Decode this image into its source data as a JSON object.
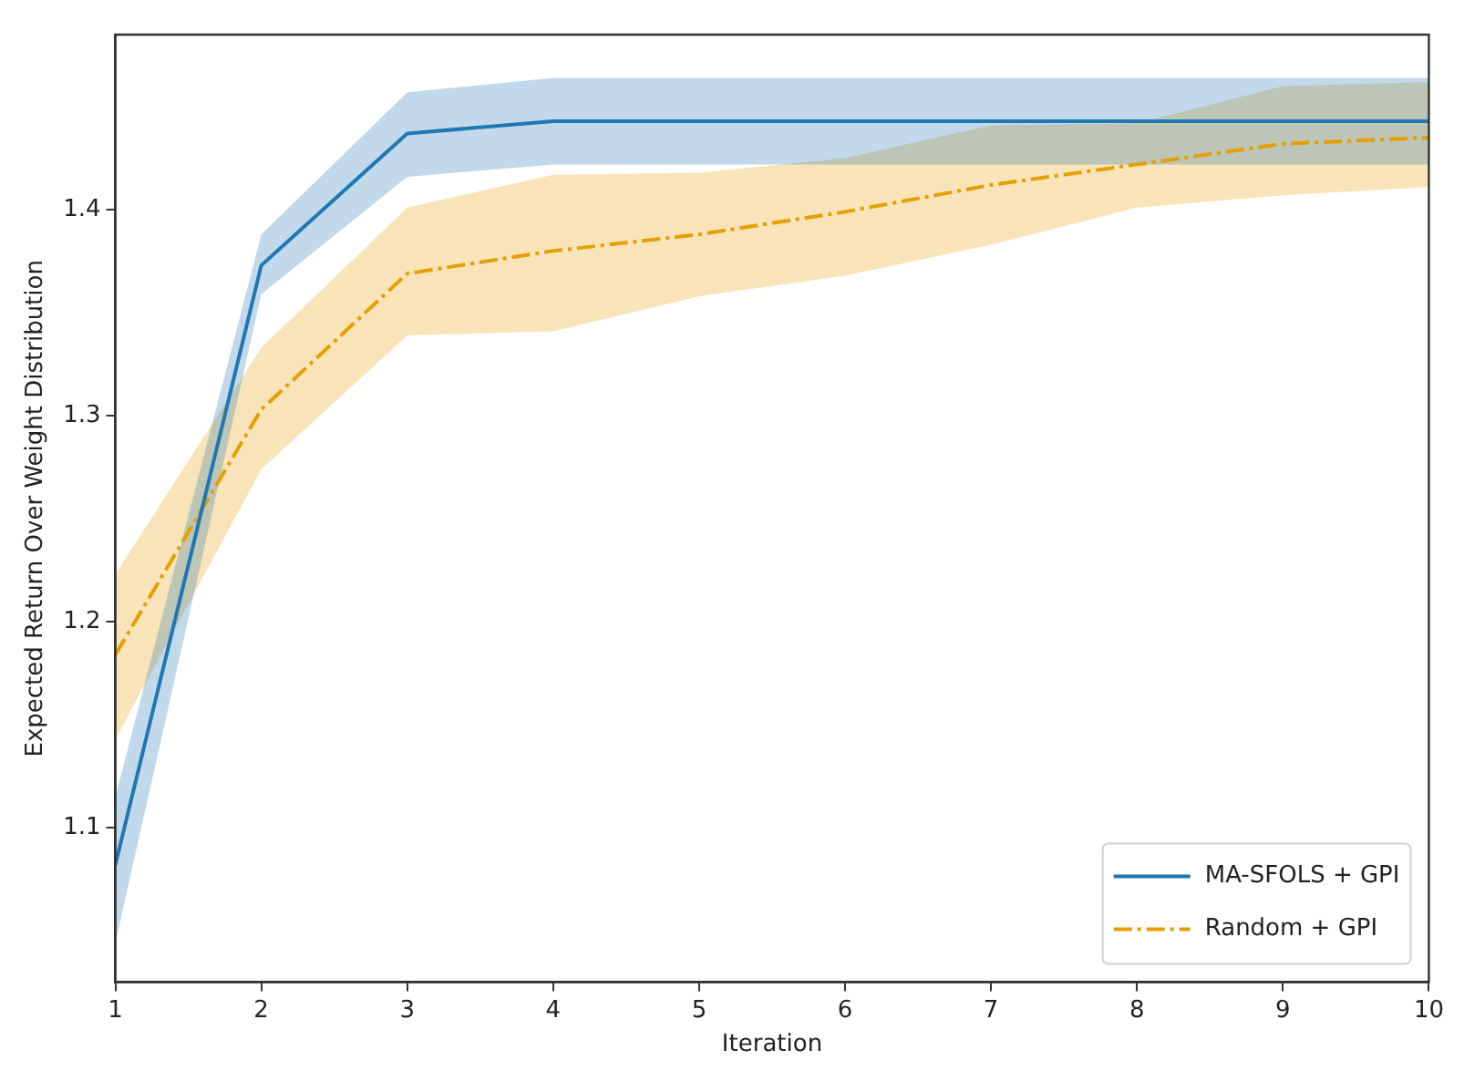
{
  "chart_data": {
    "type": "line",
    "xlabel": "Iteration",
    "ylabel": "Expected Return Over Weight Distribution",
    "x": [
      1,
      2,
      3,
      4,
      5,
      6,
      7,
      8,
      9,
      10
    ],
    "series": [
      {
        "name": "MA-SFOLS + GPI",
        "color": "#1f77b4",
        "line_style": "solid",
        "values": [
          1.082,
          1.373,
          1.437,
          1.443,
          1.443,
          1.443,
          1.443,
          1.443,
          1.443,
          1.443
        ],
        "lower": [
          1.044,
          1.359,
          1.416,
          1.422,
          1.422,
          1.422,
          1.422,
          1.422,
          1.422,
          1.422
        ],
        "upper": [
          1.115,
          1.388,
          1.457,
          1.464,
          1.464,
          1.464,
          1.464,
          1.464,
          1.464,
          1.464
        ]
      },
      {
        "name": "Random + GPI",
        "color": "#e69f00",
        "line_style": "dashdot",
        "values": [
          1.184,
          1.303,
          1.369,
          1.38,
          1.388,
          1.399,
          1.412,
          1.422,
          1.432,
          1.435
        ],
        "lower": [
          1.143,
          1.274,
          1.339,
          1.341,
          1.358,
          1.368,
          1.383,
          1.401,
          1.407,
          1.411
        ],
        "upper": [
          1.223,
          1.333,
          1.401,
          1.417,
          1.418,
          1.425,
          1.441,
          1.442,
          1.46,
          1.462
        ]
      }
    ],
    "xlim": [
      1,
      10
    ],
    "xticks": [
      1,
      2,
      3,
      4,
      5,
      6,
      7,
      8,
      9,
      10
    ],
    "ylim": [
      1.025,
      1.485
    ],
    "yticks": [
      1.1,
      1.2,
      1.3,
      1.4
    ],
    "grid": false,
    "legend": "bottom right",
    "marker": "none"
  }
}
